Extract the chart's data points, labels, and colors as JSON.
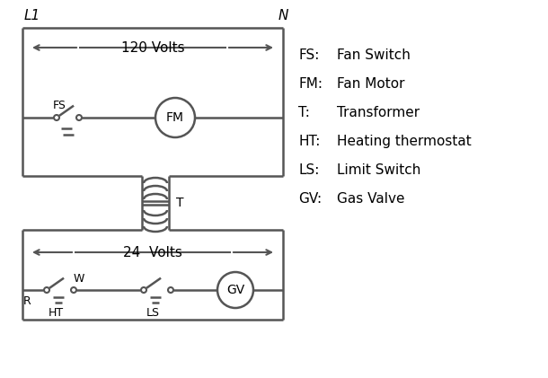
{
  "bg_color": "#ffffff",
  "line_color": "#555555",
  "text_color": "#000000",
  "legend_entries": [
    [
      "FS:",
      "Fan Switch"
    ],
    [
      "FM:",
      "Fan Motor"
    ],
    [
      "T:",
      "Transformer"
    ],
    [
      "HT:",
      "Heating thermostat"
    ],
    [
      "LS:",
      "Limit Switch"
    ],
    [
      "GV:",
      "Gas Valve"
    ]
  ],
  "L1_label": "L1",
  "N_label": "N",
  "volts120_label": "120 Volts",
  "volts24_label": "24  Volts",
  "T_label": "T",
  "R_label": "R",
  "W_label": "W",
  "HT_label": "HT",
  "LS_label": "LS",
  "FS_label": "FS",
  "FM_label": "FM",
  "GV_label": "GV"
}
